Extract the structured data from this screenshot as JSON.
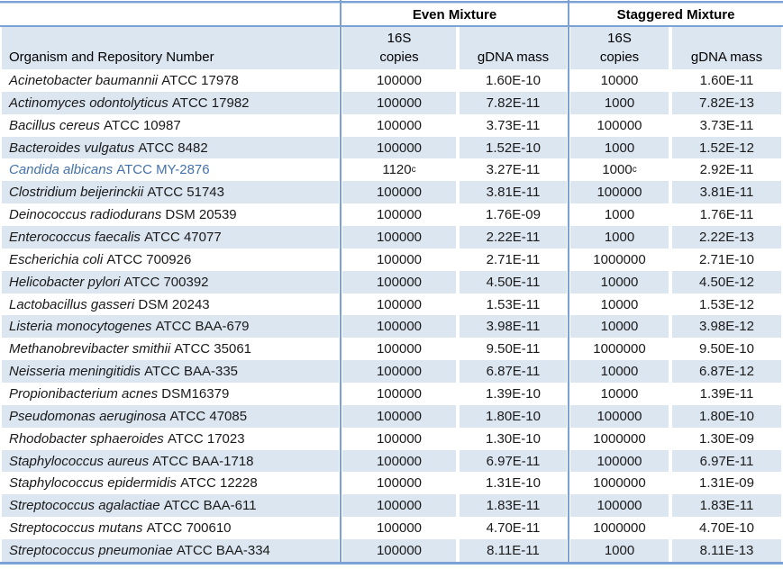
{
  "table": {
    "organism_header": "Organism and Repository Number",
    "groups": {
      "even": "Even Mixture",
      "staggered": "Staggered Mixture"
    },
    "subheaders": {
      "copies_line1": "16S",
      "copies_line2": "copies",
      "gdna": "gDNA mass"
    },
    "footnote_marker": "c",
    "rows": [
      {
        "species": "Acinetobacter baumannii",
        "repository": "ATCC 17978",
        "even_copies": "100000",
        "even_copies_sup": "",
        "even_gdna": "1.60E-10",
        "stag_copies": "10000",
        "stag_copies_sup": "",
        "stag_gdna": "1.60E-11",
        "highlighted": false
      },
      {
        "species": "Actinomyces odontolyticus",
        "repository": "ATCC 17982",
        "even_copies": "100000",
        "even_copies_sup": "",
        "even_gdna": "7.82E-11",
        "stag_copies": "1000",
        "stag_copies_sup": "",
        "stag_gdna": "7.82E-13",
        "highlighted": false
      },
      {
        "species": "Bacillus cereus",
        "repository": "ATCC 10987",
        "even_copies": "100000",
        "even_copies_sup": "",
        "even_gdna": "3.73E-11",
        "stag_copies": "100000",
        "stag_copies_sup": "",
        "stag_gdna": "3.73E-11",
        "highlighted": false
      },
      {
        "species": "Bacteroides vulgatus",
        "repository": "ATCC 8482",
        "even_copies": "100000",
        "even_copies_sup": "",
        "even_gdna": "1.52E-10",
        "stag_copies": "1000",
        "stag_copies_sup": "",
        "stag_gdna": "1.52E-12",
        "highlighted": false
      },
      {
        "species": "Candida albicans",
        "repository": "ATCC MY-2876",
        "even_copies": "1120",
        "even_copies_sup": "c",
        "even_gdna": "3.27E-11",
        "stag_copies": "1000",
        "stag_copies_sup": "c",
        "stag_gdna": "2.92E-11",
        "highlighted": true
      },
      {
        "species": "Clostridium beijerinckii",
        "repository": "ATCC 51743",
        "even_copies": "100000",
        "even_copies_sup": "",
        "even_gdna": "3.81E-11",
        "stag_copies": "100000",
        "stag_copies_sup": "",
        "stag_gdna": "3.81E-11",
        "highlighted": false
      },
      {
        "species": "Deinococcus radiodurans",
        "repository": "DSM 20539",
        "even_copies": "100000",
        "even_copies_sup": "",
        "even_gdna": "1.76E-09",
        "stag_copies": "1000",
        "stag_copies_sup": "",
        "stag_gdna": "1.76E-11",
        "highlighted": false
      },
      {
        "species": "Enterococcus faecalis",
        "repository": "ATCC 47077",
        "even_copies": "100000",
        "even_copies_sup": "",
        "even_gdna": "2.22E-11",
        "stag_copies": "1000",
        "stag_copies_sup": "",
        "stag_gdna": "2.22E-13",
        "highlighted": false
      },
      {
        "species": "Escherichia coli",
        "repository": "ATCC 700926",
        "even_copies": "100000",
        "even_copies_sup": "",
        "even_gdna": "2.71E-11",
        "stag_copies": "1000000",
        "stag_copies_sup": "",
        "stag_gdna": "2.71E-10",
        "highlighted": false
      },
      {
        "species": "Helicobacter pylori",
        "repository": "ATCC 700392",
        "even_copies": "100000",
        "even_copies_sup": "",
        "even_gdna": "4.50E-11",
        "stag_copies": "10000",
        "stag_copies_sup": "",
        "stag_gdna": "4.50E-12",
        "highlighted": false
      },
      {
        "species": "Lactobacillus gasseri",
        "repository": "DSM 20243",
        "even_copies": "100000",
        "even_copies_sup": "",
        "even_gdna": "1.53E-11",
        "stag_copies": "10000",
        "stag_copies_sup": "",
        "stag_gdna": "1.53E-12",
        "highlighted": false
      },
      {
        "species": "Listeria monocytogenes",
        "repository": "ATCC BAA-679",
        "even_copies": "100000",
        "even_copies_sup": "",
        "even_gdna": "3.98E-11",
        "stag_copies": "10000",
        "stag_copies_sup": "",
        "stag_gdna": "3.98E-12",
        "highlighted": false
      },
      {
        "species": "Methanobrevibacter smithii",
        "repository": "ATCC 35061",
        "even_copies": "100000",
        "even_copies_sup": "",
        "even_gdna": "9.50E-11",
        "stag_copies": "1000000",
        "stag_copies_sup": "",
        "stag_gdna": "9.50E-10",
        "highlighted": false
      },
      {
        "species": "Neisseria meningitidis",
        "repository": "ATCC BAA-335",
        "even_copies": "100000",
        "even_copies_sup": "",
        "even_gdna": "6.87E-11",
        "stag_copies": "10000",
        "stag_copies_sup": "",
        "stag_gdna": "6.87E-12",
        "highlighted": false
      },
      {
        "species": "Propionibacterium acnes",
        "repository": "DSM16379",
        "even_copies": "100000",
        "even_copies_sup": "",
        "even_gdna": "1.39E-10",
        "stag_copies": "10000",
        "stag_copies_sup": "",
        "stag_gdna": "1.39E-11",
        "highlighted": false
      },
      {
        "species": "Pseudomonas aeruginosa",
        "repository": "ATCC 47085",
        "even_copies": "100000",
        "even_copies_sup": "",
        "even_gdna": "1.80E-10",
        "stag_copies": "100000",
        "stag_copies_sup": "",
        "stag_gdna": "1.80E-10",
        "highlighted": false
      },
      {
        "species": "Rhodobacter sphaeroides",
        "repository": "ATCC 17023",
        "even_copies": "100000",
        "even_copies_sup": "",
        "even_gdna": "1.30E-10",
        "stag_copies": "1000000",
        "stag_copies_sup": "",
        "stag_gdna": "1.30E-09",
        "highlighted": false
      },
      {
        "species": "Staphylococcus aureus",
        "repository": "ATCC BAA-1718",
        "even_copies": "100000",
        "even_copies_sup": "",
        "even_gdna": "6.97E-11",
        "stag_copies": "100000",
        "stag_copies_sup": "",
        "stag_gdna": "6.97E-11",
        "highlighted": false
      },
      {
        "species": "Staphylococcus epidermidis",
        "repository": "ATCC 12228",
        "even_copies": "100000",
        "even_copies_sup": "",
        "even_gdna": "1.31E-10",
        "stag_copies": "1000000",
        "stag_copies_sup": "",
        "stag_gdna": "1.31E-09",
        "highlighted": false
      },
      {
        "species": "Streptococcus agalactiae",
        "repository": "ATCC BAA-611",
        "even_copies": "100000",
        "even_copies_sup": "",
        "even_gdna": "1.83E-11",
        "stag_copies": "100000",
        "stag_copies_sup": "",
        "stag_gdna": "1.83E-11",
        "highlighted": false
      },
      {
        "species": "Streptococcus mutans",
        "repository": "ATCC 700610",
        "even_copies": "100000",
        "even_copies_sup": "",
        "even_gdna": "4.70E-11",
        "stag_copies": "1000000",
        "stag_copies_sup": "",
        "stag_gdna": "4.70E-10",
        "highlighted": false
      },
      {
        "species": "Streptococcus pneumoniae",
        "repository": "ATCC BAA-334",
        "even_copies": "100000",
        "even_copies_sup": "",
        "even_gdna": "8.11E-11",
        "stag_copies": "1000",
        "stag_copies_sup": "",
        "stag_gdna": "8.11E-13",
        "highlighted": false
      }
    ]
  },
  "colors": {
    "stripe": "#dce6f1",
    "rule_line": "#7ba2d4",
    "highlight_text": "#4472aa"
  }
}
